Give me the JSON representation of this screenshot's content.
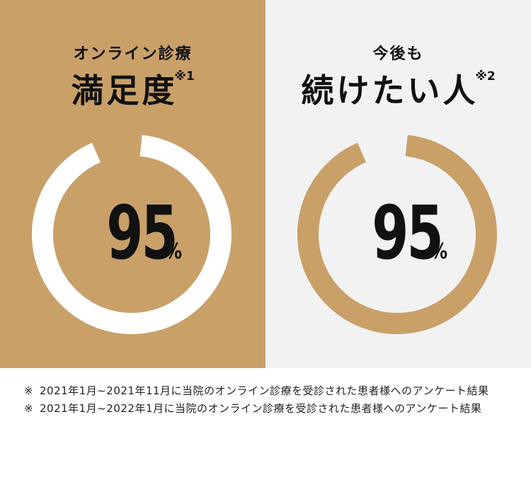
{
  "colors": {
    "gold": "#c9a068",
    "light_gray": "#f2f2f2",
    "white": "#ffffff",
    "text": "#111111"
  },
  "chart_data": [
    {
      "type": "pie",
      "subtitle": "オンライン診療",
      "title": "満足度",
      "note_mark": "※1",
      "value": 95,
      "value_text": "95",
      "unit": "%",
      "max": 100,
      "ring_color": "#ffffff",
      "background": "#c9a068"
    },
    {
      "type": "pie",
      "subtitle": "今後も",
      "title": "続けたい人",
      "note_mark": "※2",
      "value": 95,
      "value_text": "95",
      "unit": "%",
      "max": 100,
      "ring_color": "#c9a068",
      "background": "#f2f2f2"
    }
  ],
  "footnotes": [
    {
      "mark": "※",
      "text": "2021年1月~2021年11月に当院のオンライン診療を受診された患者様へのアンケート結果"
    },
    {
      "mark": "※",
      "text": "2021年1月~2022年1月に当院のオンライン診療を受診された患者様へのアンケート結果"
    }
  ]
}
